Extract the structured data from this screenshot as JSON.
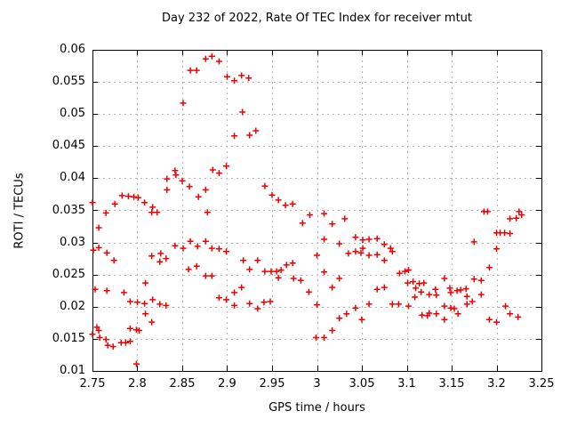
{
  "chart_data": {
    "type": "scatter",
    "title": "Day 232 of 2022, Rate Of TEC Index for receiver mtut",
    "xlabel": "GPS time / hours",
    "ylabel": "ROTI / TECUs",
    "xlim": [
      2.75,
      3.25
    ],
    "ylim": [
      0.01,
      0.06
    ],
    "xticks": [
      "2.75",
      "2.8",
      "2.85",
      "2.9",
      "2.95",
      "3",
      "3.05",
      "3.1",
      "3.15",
      "3.2",
      "3.25"
    ],
    "yticks": [
      "0.01",
      "0.015",
      "0.02",
      "0.025",
      "0.03",
      "0.035",
      "0.04",
      "0.045",
      "0.05",
      "0.055",
      "0.06"
    ],
    "grid": true,
    "legend_position": "none",
    "marker": {
      "shape": "plus",
      "color": "#ee0000",
      "size": 7
    },
    "axis_color": "#000000",
    "grid_color": "#b5b5b5",
    "background_color": "#ffffff",
    "series": [
      {
        "name": "ROTI",
        "points": [
          [
            2.75,
            0.0362
          ],
          [
            2.75,
            0.0157
          ],
          [
            2.751,
            0.0288
          ],
          [
            2.753,
            0.0227
          ],
          [
            2.755,
            0.0168
          ],
          [
            2.757,
            0.0163
          ],
          [
            2.757,
            0.0323
          ],
          [
            2.757,
            0.0292
          ],
          [
            2.758,
            0.0152
          ],
          [
            2.765,
            0.0149
          ],
          [
            2.765,
            0.0346
          ],
          [
            2.766,
            0.0284
          ],
          [
            2.766,
            0.0225
          ],
          [
            2.767,
            0.014
          ],
          [
            2.773,
            0.0138
          ],
          [
            2.774,
            0.0272
          ],
          [
            2.775,
            0.036
          ],
          [
            2.782,
            0.0144
          ],
          [
            2.783,
            0.0373
          ],
          [
            2.785,
            0.0222
          ],
          [
            2.787,
            0.0144
          ],
          [
            2.79,
            0.0372
          ],
          [
            2.792,
            0.0146
          ],
          [
            2.792,
            0.0166
          ],
          [
            2.792,
            0.0208
          ],
          [
            2.796,
            0.0371
          ],
          [
            2.799,
            0.0164
          ],
          [
            2.799,
            0.0111
          ],
          [
            2.8,
            0.0207
          ],
          [
            2.801,
            0.037
          ],
          [
            2.802,
            0.0163
          ],
          [
            2.808,
            0.0205
          ],
          [
            2.808,
            0.0362
          ],
          [
            2.809,
            0.0237
          ],
          [
            2.809,
            0.0189
          ],
          [
            2.816,
            0.0279
          ],
          [
            2.816,
            0.0347
          ],
          [
            2.816,
            0.0176
          ],
          [
            2.817,
            0.0355
          ],
          [
            2.817,
            0.0211
          ],
          [
            2.822,
            0.0347
          ],
          [
            2.826,
            0.0283
          ],
          [
            2.825,
            0.027
          ],
          [
            2.825,
            0.0204
          ],
          [
            2.832,
            0.0275
          ],
          [
            2.832,
            0.0202
          ],
          [
            2.833,
            0.0399
          ],
          [
            2.833,
            0.0382
          ],
          [
            2.842,
            0.0412
          ],
          [
            2.843,
            0.0405
          ],
          [
            2.85,
            0.0396
          ],
          [
            2.851,
            0.0517
          ],
          [
            2.858,
            0.0387
          ],
          [
            2.859,
            0.0568
          ],
          [
            2.866,
            0.0568
          ],
          [
            2.868,
            0.0371
          ],
          [
            2.876,
            0.0382
          ],
          [
            2.876,
            0.0586
          ],
          [
            2.883,
            0.059
          ],
          [
            2.891,
            0.0582
          ],
          [
            2.884,
            0.0413
          ],
          [
            2.891,
            0.0408
          ],
          [
            2.899,
            0.0419
          ],
          [
            2.9,
            0.0558
          ],
          [
            2.908,
            0.0552
          ],
          [
            2.916,
            0.056
          ],
          [
            2.924,
            0.0556
          ],
          [
            2.917,
            0.0503
          ],
          [
            2.908,
            0.0466
          ],
          [
            2.925,
            0.0467
          ],
          [
            2.932,
            0.0474
          ],
          [
            2.942,
            0.0388
          ],
          [
            2.95,
            0.0374
          ],
          [
            2.957,
            0.0366
          ],
          [
            2.965,
            0.0358
          ],
          [
            2.973,
            0.036
          ],
          [
            2.842,
            0.0295
          ],
          [
            2.851,
            0.0291
          ],
          [
            2.859,
            0.0302
          ],
          [
            2.867,
            0.0294
          ],
          [
            2.876,
            0.0302
          ],
          [
            2.883,
            0.0291
          ],
          [
            2.891,
            0.029
          ],
          [
            2.899,
            0.0286
          ],
          [
            2.857,
            0.0258
          ],
          [
            2.866,
            0.0263
          ],
          [
            2.876,
            0.0248
          ],
          [
            2.883,
            0.0248
          ],
          [
            2.878,
            0.0347
          ],
          [
            2.891,
            0.0214
          ],
          [
            2.899,
            0.0211
          ],
          [
            2.908,
            0.0222
          ],
          [
            2.916,
            0.023
          ],
          [
            2.918,
            0.0272
          ],
          [
            2.934,
            0.0272
          ],
          [
            2.925,
            0.0258
          ],
          [
            2.908,
            0.0202
          ],
          [
            2.925,
            0.0205
          ],
          [
            2.934,
            0.0197
          ],
          [
            2.941,
            0.0207
          ],
          [
            2.948,
            0.0208
          ],
          [
            2.942,
            0.0255
          ],
          [
            2.949,
            0.0255
          ],
          [
            2.955,
            0.0255
          ],
          [
            2.96,
            0.0257
          ],
          [
            2.966,
            0.0265
          ],
          [
            2.973,
            0.0268
          ],
          [
            2.957,
            0.0245
          ],
          [
            2.974,
            0.0244
          ],
          [
            2.982,
            0.0241
          ],
          [
            2.984,
            0.033
          ],
          [
            2.991,
            0.0223
          ],
          [
            2.992,
            0.0343
          ],
          [
            2.999,
            0.0152
          ],
          [
            3.008,
            0.0152
          ],
          [
            3.017,
            0.0163
          ],
          [
            3.0,
            0.028
          ],
          [
            3.0,
            0.0203
          ],
          [
            3.008,
            0.0345
          ],
          [
            3.008,
            0.0305
          ],
          [
            3.008,
            0.0254
          ],
          [
            3.017,
            0.0329
          ],
          [
            3.017,
            0.023
          ],
          [
            3.025,
            0.0298
          ],
          [
            3.025,
            0.0244
          ],
          [
            3.025,
            0.0182
          ],
          [
            3.031,
            0.0337
          ],
          [
            3.033,
            0.0189
          ],
          [
            3.035,
            0.0283
          ],
          [
            3.043,
            0.0308
          ],
          [
            3.043,
            0.0286
          ],
          [
            3.043,
            0.0198
          ],
          [
            3.049,
            0.0284
          ],
          [
            3.05,
            0.018
          ],
          [
            3.051,
            0.0304
          ],
          [
            3.051,
            0.0291
          ],
          [
            3.058,
            0.0305
          ],
          [
            3.058,
            0.028
          ],
          [
            3.058,
            0.0204
          ],
          [
            3.067,
            0.0306
          ],
          [
            3.067,
            0.0281
          ],
          [
            3.067,
            0.0227
          ],
          [
            3.075,
            0.0297
          ],
          [
            3.075,
            0.0272
          ],
          [
            3.075,
            0.023
          ],
          [
            3.082,
            0.0291
          ],
          [
            3.084,
            0.0286
          ],
          [
            3.084,
            0.0204
          ],
          [
            3.091,
            0.0204
          ],
          [
            3.092,
            0.0252
          ],
          [
            3.098,
            0.0255
          ],
          [
            3.102,
            0.0257
          ],
          [
            3.102,
            0.0201
          ],
          [
            3.101,
            0.0237
          ],
          [
            3.107,
            0.0239
          ],
          [
            3.109,
            0.0215
          ],
          [
            3.11,
            0.0229
          ],
          [
            3.114,
            0.0236
          ],
          [
            3.116,
            0.0223
          ],
          [
            3.117,
            0.0187
          ],
          [
            3.119,
            0.0237
          ],
          [
            3.123,
            0.0186
          ],
          [
            3.125,
            0.0219
          ],
          [
            3.125,
            0.019
          ],
          [
            3.132,
            0.0227
          ],
          [
            3.133,
            0.0218
          ],
          [
            3.133,
            0.0189
          ],
          [
            3.142,
            0.0244
          ],
          [
            3.142,
            0.0201
          ],
          [
            3.142,
            0.018
          ],
          [
            3.148,
            0.0229
          ],
          [
            3.149,
            0.0222
          ],
          [
            3.149,
            0.0198
          ],
          [
            3.153,
            0.0197
          ],
          [
            3.156,
            0.0225
          ],
          [
            3.157,
            0.0189
          ],
          [
            3.16,
            0.0226
          ],
          [
            3.166,
            0.0228
          ],
          [
            3.167,
            0.0216
          ],
          [
            3.167,
            0.0204
          ],
          [
            3.173,
            0.0208
          ],
          [
            3.175,
            0.0301
          ],
          [
            3.175,
            0.0243
          ],
          [
            3.183,
            0.0241
          ],
          [
            3.183,
            0.0219
          ],
          [
            3.186,
            0.0348
          ],
          [
            3.19,
            0.0348
          ],
          [
            3.192,
            0.0261
          ],
          [
            3.192,
            0.018
          ],
          [
            3.2,
            0.029
          ],
          [
            3.2,
            0.0176
          ],
          [
            3.2,
            0.0315
          ],
          [
            3.204,
            0.0315
          ],
          [
            3.209,
            0.0315
          ],
          [
            3.215,
            0.0314
          ],
          [
            3.21,
            0.0201
          ],
          [
            3.215,
            0.0337
          ],
          [
            3.215,
            0.0189
          ],
          [
            3.222,
            0.0338
          ],
          [
            3.224,
            0.0184
          ],
          [
            3.225,
            0.0348
          ],
          [
            3.228,
            0.0343
          ]
        ]
      }
    ]
  }
}
